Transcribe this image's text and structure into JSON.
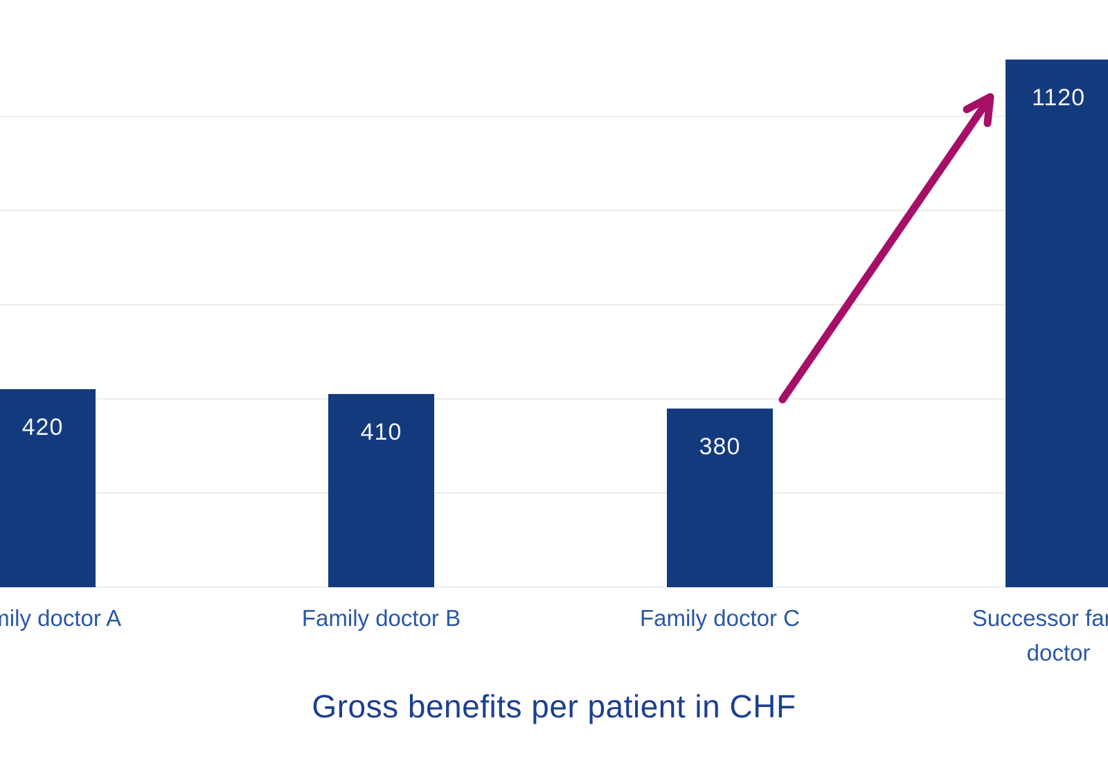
{
  "chart_data": {
    "type": "bar",
    "title": "Gross benefits per patient in CHF",
    "categories": [
      "Family doctor A",
      "Family doctor B",
      "Family doctor C",
      "Successor family doctor"
    ],
    "values": [
      420,
      410,
      380,
      1120
    ],
    "value_labels": [
      "420",
      "410",
      "380",
      "1120"
    ],
    "xlabel": "",
    "ylabel": "",
    "ylim": [
      0,
      1240
    ],
    "gridline_interval": 200,
    "grid": "horizontal gridlines only, no visible axes, no tick labels",
    "legend_position": "none",
    "annotations": [
      {
        "kind": "arrow",
        "description": "magenta arrow rising from top of Family doctor C bar to top of Successor family doctor bar",
        "from_category": "Family doctor C",
        "to_category": "Successor family doctor"
      }
    ],
    "colors": {
      "bar_fill": "#143a7e",
      "bar_value_label": "#f3f6fb",
      "category_label": "#2a57a5",
      "title": "#1c3f90",
      "gridline": "#ececec",
      "arrow": "#a50f66",
      "background": "#ffffff"
    }
  }
}
